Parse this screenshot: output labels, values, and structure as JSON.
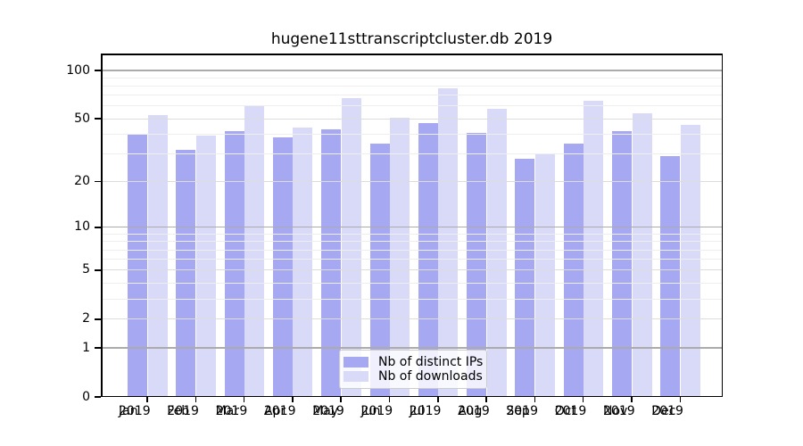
{
  "title": "hugene11sttranscriptcluster.db 2019",
  "year_label": "2019",
  "months": [
    "Jan",
    "Feb",
    "Mar",
    "Apr",
    "May",
    "Jun",
    "Jul",
    "Aug",
    "Sep",
    "Oct",
    "Nov",
    "Dec"
  ],
  "y_axis": {
    "ticks": [
      {
        "label": "100",
        "value": 100
      },
      {
        "label": "50",
        "value": 50
      },
      {
        "label": "20",
        "value": 20
      },
      {
        "label": "10",
        "value": 10
      },
      {
        "label": "5",
        "value": 5
      },
      {
        "label": "2",
        "value": 2
      },
      {
        "label": "1",
        "value": 1
      },
      {
        "label": "0",
        "value": 0
      }
    ],
    "strong_gridlines": [
      1,
      10,
      100
    ],
    "major_gridlines": [
      2,
      5,
      20,
      50
    ],
    "minor_gridlines": [
      3,
      4,
      6,
      7,
      8,
      9,
      30,
      40,
      60,
      70,
      80,
      90
    ]
  },
  "legend": {
    "items": [
      {
        "label": "Nb of distinct IPs",
        "series": "ips"
      },
      {
        "label": "Nb of downloads",
        "series": "downloads"
      }
    ]
  },
  "colors": {
    "ips": "#a7a8f2",
    "downloads": "#d9daf7",
    "grid_strong": "#ababab",
    "grid_major": "#dcdcdc",
    "grid_minor": "#eeeeee",
    "axis": "#000000",
    "legend_border": "#cccccc"
  },
  "chart_data": {
    "type": "bar",
    "title": "hugene11sttranscriptcluster.db 2019",
    "categories": [
      "Jan 2019",
      "Feb 2019",
      "Mar 2019",
      "Apr 2019",
      "May 2019",
      "Jun 2019",
      "Jul 2019",
      "Aug 2019",
      "Sep 2019",
      "Oct 2019",
      "Nov 2019",
      "Dec 2019"
    ],
    "series": [
      {
        "name": "Nb of distinct IPs",
        "color": "#a7a8f2",
        "values": [
          40,
          32,
          42,
          38,
          43,
          35,
          47,
          41,
          28,
          35,
          42,
          29
        ]
      },
      {
        "name": "Nb of downloads",
        "color": "#d9daf7",
        "values": [
          53,
          39,
          61,
          44,
          67,
          51,
          77,
          58,
          30,
          65,
          54,
          46
        ]
      }
    ],
    "xlabel": "",
    "ylabel": "",
    "y_scale": "log1p",
    "y_tick_values": [
      0,
      1,
      2,
      5,
      10,
      20,
      50,
      100
    ],
    "ylim": [
      0,
      127
    ],
    "grid": true,
    "grid_above_bars": true,
    "legend_position": "lower center"
  }
}
